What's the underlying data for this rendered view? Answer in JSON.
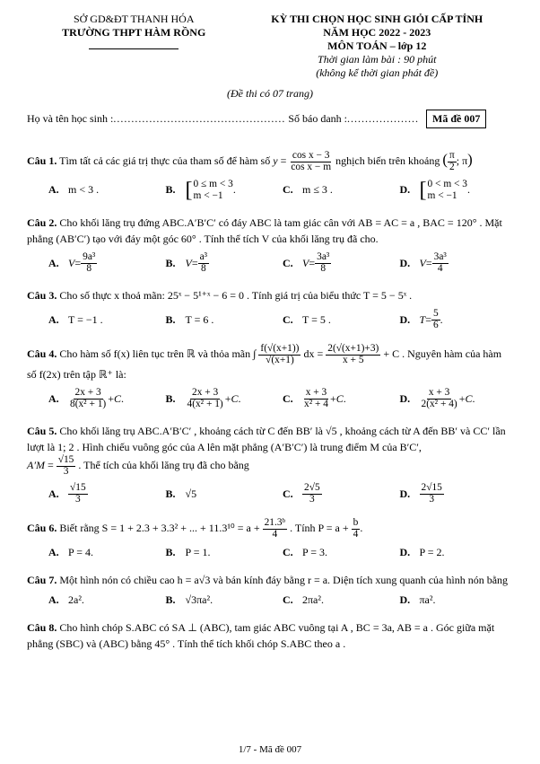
{
  "header": {
    "dept": "SỞ GD&ĐT THANH HÓA",
    "school": "TRƯỜNG THPT HÀM RỒNG",
    "examTitle": "KỲ THI CHỌN HỌC SINH GIỎI CẤP TỈNH",
    "year": "NĂM HỌC 2022 - 2023",
    "subject": "MÔN TOÁN – lớp 12",
    "duration": "Thời gian làm bài : 90 phút",
    "note": "(không kể thời gian phát đề)",
    "pages": "(Đề thi có 07 trang)",
    "nameLabel": "Họ và tên học sinh :",
    "nameDots": "................................................",
    "idLabel": "Số báo danh :",
    "idDots": "....................",
    "codeLabel": "Mã đề 007"
  },
  "q1": {
    "no": "Câu 1.",
    "p1": "Tìm tất cả các giá trị thực của tham số để hàm số ",
    "fn": {
      "num": "cos x − 3",
      "den": "cos x − m"
    },
    "p2": " nghịch biến trên khoảng ",
    "intv": {
      "num": "π",
      "den": "2"
    },
    "a": "m < 3 .",
    "b": {
      "r1": "0 ≤ m < 3",
      "r2": "m < −1"
    },
    "c": "m ≤ 3 .",
    "d": {
      "r1": "0 < m < 3",
      "r2": "m < −1"
    }
  },
  "q2": {
    "no": "Câu 2.",
    "p1": "Cho khối lăng trụ đứng ABC.A′B′C′ có đáy ABC là tam giác cân với AB = AC = a , BAC = 120° . Mặt phẳng (AB′C′) tạo với đáy một góc 60° . Tính thể tích V của khối lăng trụ đã cho.",
    "a": {
      "num": "9a³",
      "den": "8"
    },
    "b": {
      "num": "a³",
      "den": "8"
    },
    "c": {
      "num": "3a³",
      "den": "8"
    },
    "d": {
      "num": "3a³",
      "den": "4"
    }
  },
  "q3": {
    "no": "Câu 3.",
    "p1": "Cho số thực x thoả mãn: 25ˣ − 5¹⁺ˣ − 6 = 0 . Tính giá trị của biểu thức T = 5 − 5ˣ .",
    "a": "T = −1 .",
    "b": "T = 6 .",
    "c": "T = 5 .",
    "d": {
      "num": "5",
      "den": "6"
    }
  },
  "q4": {
    "no": "Câu 4.",
    "p1": "Cho hàm số f(x) liên tục trên ℝ và thỏa mãn ∫",
    "fr1": {
      "num": "f(√(x+1))",
      "den": "√(x+1)"
    },
    "eq": " dx = ",
    "fr2": {
      "num": "2(√(x+1)+3)",
      "den": "x + 5"
    },
    "p2": " + C . Nguyên hàm của hàm số f(2x) trên tập ℝ⁺ là:",
    "a": {
      "num": "2x + 3",
      "den": "8(x² + 1)"
    },
    "b": {
      "num": "2x + 3",
      "den": "4(x² + 1)"
    },
    "c": {
      "num": "x + 3",
      "den": "x² + 4"
    },
    "d": {
      "num": "x + 3",
      "den": "2(x² + 4)"
    }
  },
  "q5": {
    "no": "Câu 5.",
    "p1": "Cho khối lăng trụ ABC.A′B′C′ , khoảng cách từ C đến BB′ là √5 , khoảng cách từ A đến BB′ và CC′ lần lượt là 1; 2 . Hình chiếu vuông góc của A lên mặt phẳng (A′B′C′) là trung điểm M của B′C′,",
    "am": {
      "num": "√15",
      "den": "3"
    },
    "p2": ". Thể tích của khối lăng trụ đã cho bằng",
    "a": {
      "num": "√15",
      "den": "3"
    },
    "b": "√5",
    "c": {
      "num": "2√5",
      "den": "3"
    },
    "d": {
      "num": "2√15",
      "den": "3"
    }
  },
  "q6": {
    "no": "Câu 6.",
    "p1": "Biết rằng S = 1 + 2.3 + 3.3² + ... + 11.3¹⁰ = a + ",
    "fr": {
      "num": "21.3ᵇ",
      "den": "4"
    },
    "p2": ". Tính P = a + ",
    "fr2": {
      "num": "b",
      "den": "4"
    },
    "a": "P = 4.",
    "b": "P = 1.",
    "c": "P = 3.",
    "d": "P = 2."
  },
  "q7": {
    "no": "Câu 7.",
    "p1": "Một hình nón có chiều cao h = a√3 và bán kính đáy bằng r = a. Diện tích xung quanh của hình nón bằng",
    "a": "2a².",
    "b": "√3πa².",
    "c": "2πa².",
    "d": "πa²."
  },
  "q8": {
    "no": "Câu 8.",
    "p1": "Cho hình chóp S.ABC có SA ⊥ (ABC), tam giác ABC vuông tại A , BC = 3a, AB = a . Góc giữa mặt phẳng (SBC) và (ABC) bằng 45° . Tính thể tích khối chóp S.ABC theo a ."
  },
  "footer": "1/7 - Mã đề 007"
}
